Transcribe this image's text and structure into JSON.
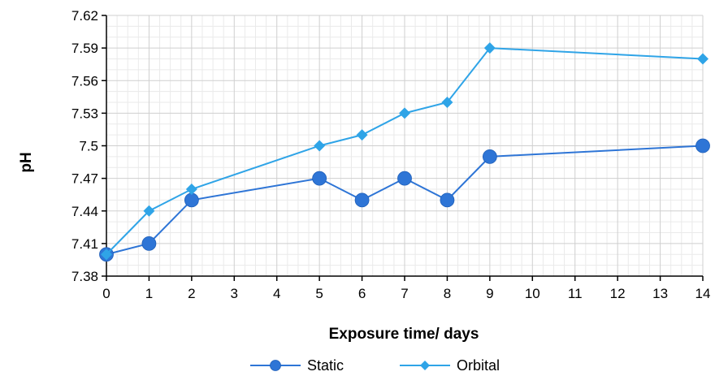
{
  "chart_data": {
    "type": "line",
    "title": "",
    "xlabel": "Exposure time/ days",
    "ylabel": "pH",
    "xlim": [
      0,
      14
    ],
    "ylim": [
      7.38,
      7.62
    ],
    "x_ticks": [
      "0",
      "1",
      "2",
      "3",
      "4",
      "5",
      "6",
      "7",
      "8",
      "9",
      "10",
      "11",
      "12",
      "13",
      "14"
    ],
    "y_ticks": [
      "7.38",
      "7.41",
      "7.44",
      "7.47",
      "7.5",
      "7.53",
      "7.56",
      "7.59",
      "7.62"
    ],
    "grid": true,
    "legend_position": "bottom",
    "series": [
      {
        "name": "Static",
        "color": "#2e75d6",
        "marker": "circle",
        "x": [
          0,
          1,
          2,
          5,
          6,
          7,
          8,
          9,
          14
        ],
        "y": [
          7.4,
          7.41,
          7.45,
          7.47,
          7.45,
          7.47,
          7.45,
          7.49,
          7.5
        ]
      },
      {
        "name": "Orbital",
        "color": "#2fa4e7",
        "marker": "diamond",
        "x": [
          0,
          1,
          2,
          5,
          6,
          7,
          8,
          9,
          14
        ],
        "y": [
          7.4,
          7.44,
          7.46,
          7.5,
          7.51,
          7.53,
          7.54,
          7.59,
          7.58
        ]
      }
    ]
  }
}
